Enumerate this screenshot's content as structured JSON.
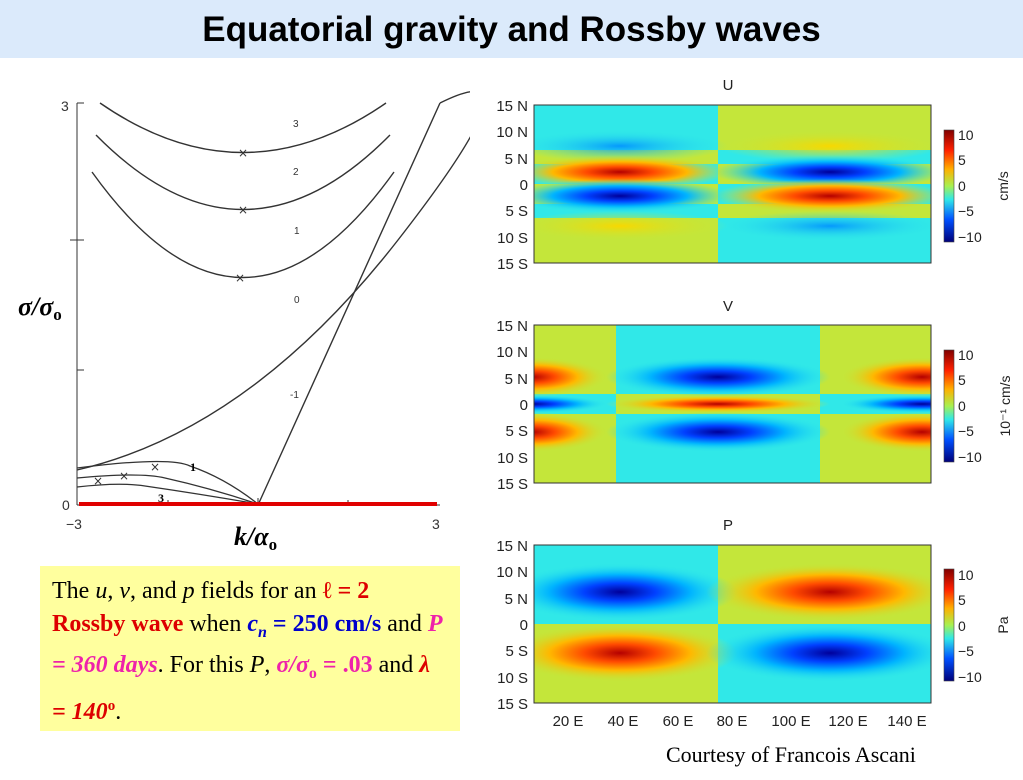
{
  "title": "Equatorial gravity and Rossby waves",
  "dispersion": {
    "y_tick_top": "3",
    "y_tick_zero": "0",
    "x_tick_left": "−3",
    "x_tick_right": "3",
    "curve_labels": [
      "3",
      "2",
      "1",
      "0",
      "-1",
      "1",
      "3"
    ],
    "ylabel_main": "σ/σ",
    "ylabel_sub": "o",
    "xlabel_main": "k/α",
    "xlabel_sub": "o",
    "marker": "×"
  },
  "caption": {
    "t1": "The ",
    "t2": "u",
    "t3": ", ",
    "t4": "v",
    "t5": ", and ",
    "t6": "p",
    "t7": " fields for an ",
    "t8": "ℓ = 2 Rossby wave",
    "t9": " when ",
    "t10": "c",
    "t11": "n",
    "t12": " = 250 cm/s",
    "t13": " and ",
    "t14": "P = 360 days",
    "t15": ".  For this ",
    "t16": "P",
    "t17": ", ",
    "t18": "σ/σ",
    "t19": "o",
    "t20": " = .03",
    "t21": " and ",
    "t22": "λ = 140",
    "t23": "o",
    "t24": "."
  },
  "maps": {
    "lat_labels": [
      "15 N",
      "10 N",
      "5 N",
      "0",
      "5 S",
      "10 S",
      "15 S"
    ],
    "lon_labels": [
      "20 E",
      "40 E",
      "60 E",
      "80 E",
      "100 E",
      "120 E",
      "140 E"
    ],
    "cbar_ticks": [
      "10",
      "5",
      "0",
      "−5",
      "−10"
    ],
    "panels": [
      {
        "title": "U",
        "unit": "cm/s"
      },
      {
        "title": "V",
        "unit": "10⁻¹ cm/s"
      },
      {
        "title": "P",
        "unit": "Pa"
      }
    ]
  },
  "credit": "Courtesy of Francois Ascani",
  "colors": {
    "background_band": "#dbeafb",
    "caption_bg": "#ffff9e",
    "red": "#dd0000",
    "blue": "#0000cc",
    "magenta": "#ee22aa"
  }
}
